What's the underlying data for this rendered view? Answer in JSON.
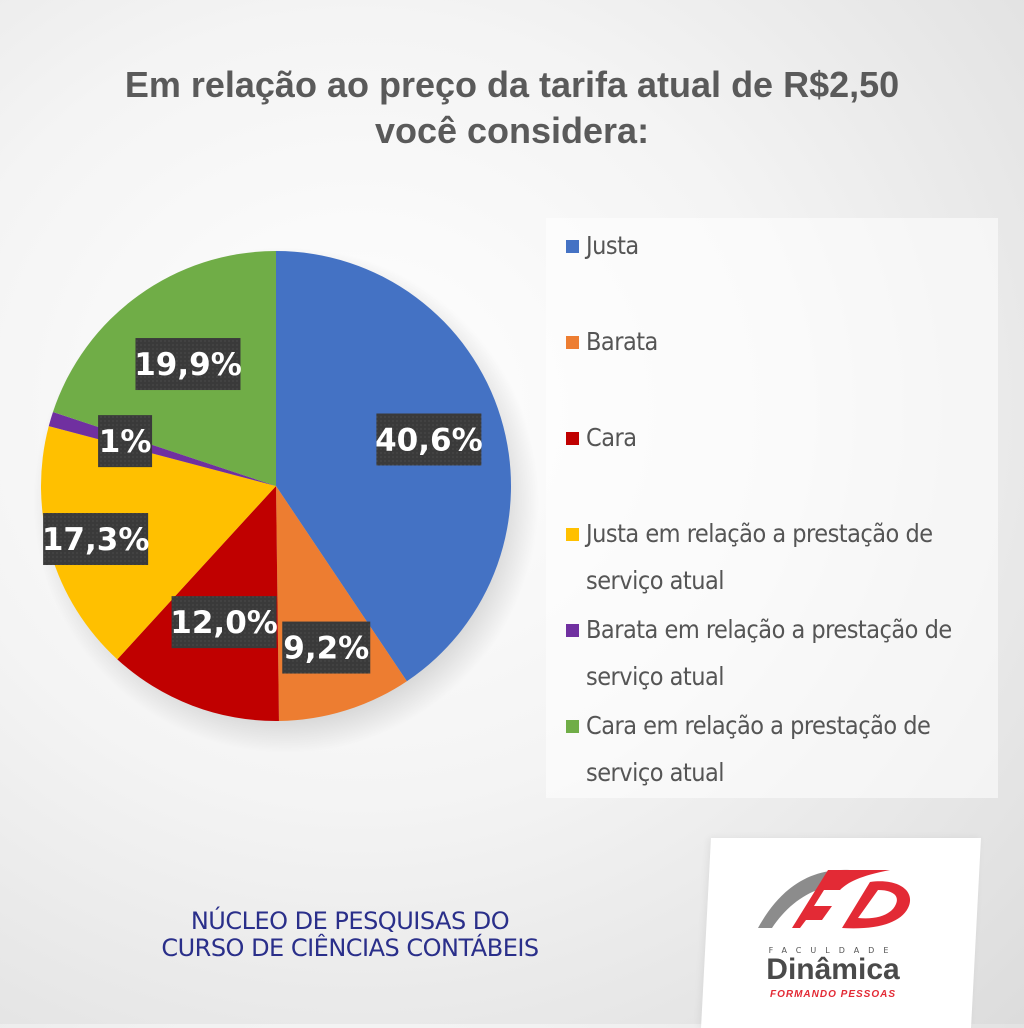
{
  "title_line1": "Em relação ao preço da tarifa atual de R$2,50",
  "title_line2": "você considera:",
  "chart_data": {
    "type": "pie",
    "title": "Em relação ao preço da tarifa atual de R$2,50 você considera:",
    "categories": [
      "Justa",
      "Barata",
      "Cara",
      "Justa em relação a prestação de serviço atual",
      "Barata em relação a prestação de serviço atual",
      "Cara em relação a prestação de serviço atual"
    ],
    "values": [
      40.6,
      9.2,
      12.0,
      17.3,
      1.0,
      19.9
    ],
    "data_labels": [
      "40,6%",
      "9,2%",
      "12,0%",
      "17,3%",
      "1%",
      "19,9%"
    ],
    "colors": [
      "#4472c4",
      "#ed7d31",
      "#c00000",
      "#ffc000",
      "#7030a0",
      "#70ad47"
    ],
    "legend_placement": "right"
  },
  "legend": [
    {
      "line1": "Justa",
      "line2": ""
    },
    {
      "line1": "Barata",
      "line2": ""
    },
    {
      "line1": "Cara",
      "line2": ""
    },
    {
      "line1": "Justa em relação a prestação de",
      "line2": "serviço atual"
    },
    {
      "line1": "Barata em relação a prestação de",
      "line2": "serviço atual"
    },
    {
      "line1": "Cara em relação a prestação de",
      "line2": "serviço atual"
    }
  ],
  "footer_line1": "NÚCLEO DE PESQUISAS DO",
  "footer_line2": "CURSO DE CIÊNCIAS CONTÁBEIS",
  "logo": {
    "faculdade": "FACULDADE",
    "name": "Dinâmica",
    "tagline": "FORMANDO PESSOAS",
    "brand_red": "#e32a35",
    "brand_gray": "#8c8c8c"
  }
}
